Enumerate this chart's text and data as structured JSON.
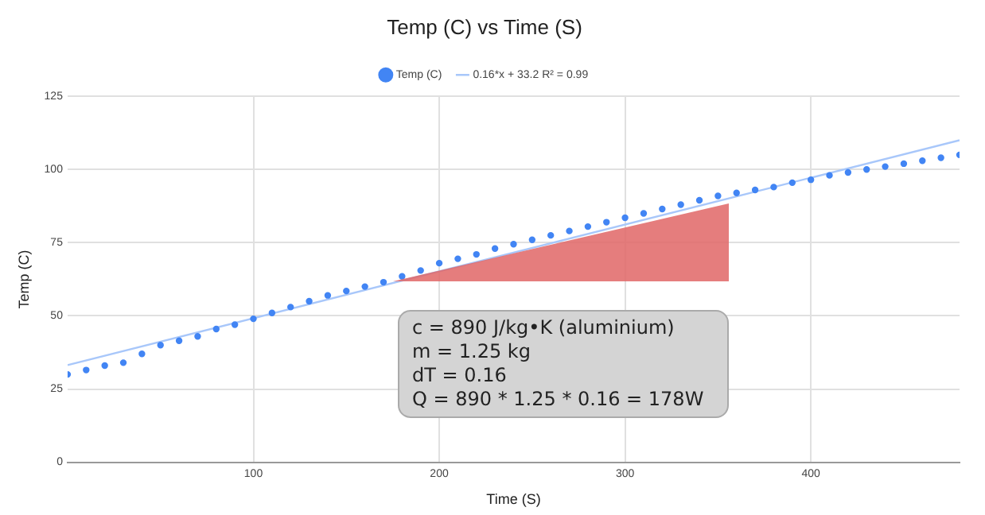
{
  "chart_data": {
    "type": "scatter",
    "title": "Temp (C) vs Time (S)",
    "xlabel": "Time (S)",
    "ylabel": "Temp (C)",
    "xlim": [
      0,
      480
    ],
    "xticks": [
      100,
      200,
      300,
      400
    ],
    "ylim": [
      0,
      125
    ],
    "yticks": [
      0,
      25,
      50,
      75,
      100,
      125
    ],
    "grid": true,
    "legend": "top",
    "annotations": [
      "c = 890 J/kg•K (aluminium)",
      "m = 1.25 kg",
      "dT = 0.16",
      "Q = 890 * 1.25 * 0.16 = 178W"
    ],
    "series": [
      {
        "name": "Temp (C)",
        "color": "#4285f4",
        "marker": "circle",
        "x": [
          0,
          10,
          20,
          30,
          40,
          50,
          60,
          70,
          80,
          90,
          100,
          110,
          120,
          130,
          140,
          150,
          160,
          170,
          180,
          190,
          200,
          210,
          220,
          230,
          240,
          250,
          260,
          270,
          280,
          290,
          300,
          310,
          320,
          330,
          340,
          350,
          360,
          370,
          380,
          390,
          400,
          410,
          420,
          430,
          440,
          450,
          460,
          470,
          480
        ],
        "values": [
          30,
          31.5,
          33,
          34,
          37,
          40,
          41.5,
          43,
          45.5,
          47,
          49,
          51,
          53,
          55,
          57,
          58.5,
          60,
          61.5,
          63.5,
          65.5,
          68,
          69.5,
          71,
          73,
          74.5,
          76,
          77.5,
          79,
          80.5,
          82,
          83.5,
          85,
          86.5,
          88,
          89.5,
          91,
          92,
          93,
          94,
          95.5,
          96.5,
          98,
          99,
          100,
          101,
          102,
          103,
          104,
          105
        ]
      },
      {
        "name": "0.16*x + 33.2 R² = 0.99",
        "color": "#a8c7fa",
        "type": "line",
        "x": [
          0,
          480
        ],
        "values": [
          33.2,
          110
        ]
      }
    ]
  }
}
